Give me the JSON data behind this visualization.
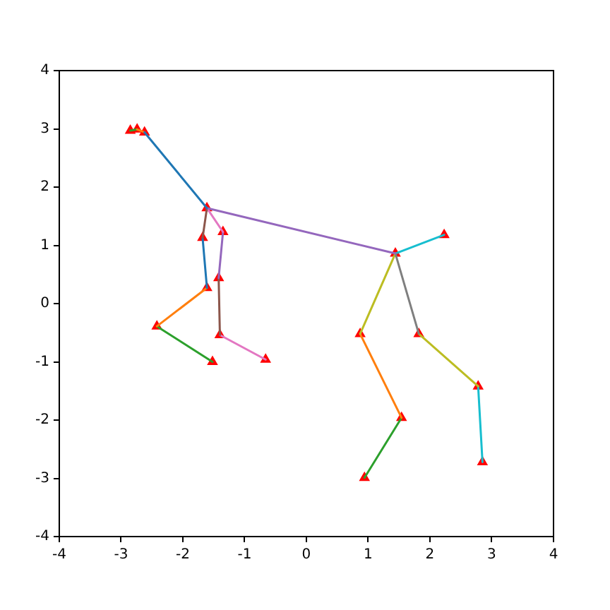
{
  "chart_data": {
    "type": "line",
    "xlim": [
      -4,
      4
    ],
    "ylim": [
      -4,
      4
    ],
    "xticks": [
      -4,
      -3,
      -2,
      -1,
      0,
      1,
      2,
      3,
      4
    ],
    "yticks": [
      -4,
      -3,
      -2,
      -1,
      0,
      1,
      2,
      3,
      4
    ],
    "grid": false,
    "legend": false,
    "series": [
      {
        "color": "#1f77b4",
        "marker": "none",
        "x": [
          -2.62,
          -1.61
        ],
        "values": [
          2.94,
          1.64
        ]
      },
      {
        "color": "#ff7f0e",
        "marker": "none",
        "x": [
          -2.74,
          -2.62
        ],
        "values": [
          2.99,
          2.94
        ]
      },
      {
        "color": "#2ca02c",
        "marker": "none",
        "x": [
          -2.85,
          -2.74
        ],
        "values": [
          2.97,
          2.99
        ]
      },
      {
        "color": "#9467bd",
        "marker": "none",
        "x": [
          -1.61,
          1.44
        ],
        "values": [
          1.64,
          0.86
        ]
      },
      {
        "color": "#8c564b",
        "marker": "none",
        "x": [
          -1.61,
          -1.68
        ],
        "values": [
          1.64,
          1.13
        ]
      },
      {
        "color": "#e377c2",
        "marker": "none",
        "x": [
          -1.61,
          -1.35
        ],
        "values": [
          1.64,
          1.23
        ]
      },
      {
        "color": "#7f7f7f",
        "marker": "none",
        "x": [
          1.44,
          1.82
        ],
        "values": [
          0.86,
          -0.52
        ]
      },
      {
        "color": "#bcbd22",
        "marker": "none",
        "x": [
          1.44,
          0.87
        ],
        "values": [
          0.86,
          -0.52
        ]
      },
      {
        "color": "#17becf",
        "marker": "none",
        "x": [
          1.44,
          2.23
        ],
        "values": [
          0.86,
          1.18
        ]
      },
      {
        "color": "#1f77b4",
        "marker": "none",
        "x": [
          -1.68,
          -1.61
        ],
        "values": [
          1.13,
          0.27
        ]
      },
      {
        "color": "#9467bd",
        "marker": "none",
        "x": [
          -1.35,
          -1.42
        ],
        "values": [
          1.23,
          0.44
        ]
      },
      {
        "color": "#ff7f0e",
        "marker": "none",
        "x": [
          -1.61,
          -2.42
        ],
        "values": [
          0.27,
          -0.39
        ]
      },
      {
        "color": "#8c564b",
        "marker": "none",
        "x": [
          -1.42,
          -1.4
        ],
        "values": [
          0.44,
          -0.54
        ]
      },
      {
        "color": "#2ca02c",
        "marker": "none",
        "x": [
          -2.42,
          -1.52
        ],
        "values": [
          -0.39,
          -1.0
        ]
      },
      {
        "color": "#e377c2",
        "marker": "none",
        "x": [
          -1.4,
          -0.66
        ],
        "values": [
          -0.54,
          -0.96
        ]
      },
      {
        "color": "#ff7f0e",
        "marker": "none",
        "x": [
          0.87,
          1.54
        ],
        "values": [
          -0.52,
          -1.96
        ]
      },
      {
        "color": "#bcbd22",
        "marker": "none",
        "x": [
          1.82,
          2.78
        ],
        "values": [
          -0.52,
          -1.42
        ]
      },
      {
        "color": "#2ca02c",
        "marker": "none",
        "x": [
          1.54,
          0.94
        ],
        "values": [
          -1.96,
          -2.99
        ]
      },
      {
        "color": "#17becf",
        "marker": "none",
        "x": [
          2.78,
          2.85
        ],
        "values": [
          -1.42,
          -2.72
        ]
      },
      {
        "type": "scatter",
        "color": "#ff0000",
        "marker": "triangle",
        "x": [
          -2.85,
          -2.74,
          -2.62,
          -1.61,
          -1.68,
          -1.35,
          -1.61,
          -1.42,
          -2.42,
          -1.52,
          -1.4,
          -0.66,
          1.44,
          2.23,
          0.87,
          1.82,
          1.54,
          0.94,
          2.78,
          2.85
        ],
        "values": [
          2.97,
          2.99,
          2.94,
          1.64,
          1.13,
          1.23,
          0.27,
          0.44,
          -0.39,
          -1.0,
          -0.54,
          -0.96,
          0.86,
          1.18,
          -0.52,
          -0.52,
          -1.96,
          -2.99,
          -1.42,
          -2.72
        ]
      }
    ]
  }
}
